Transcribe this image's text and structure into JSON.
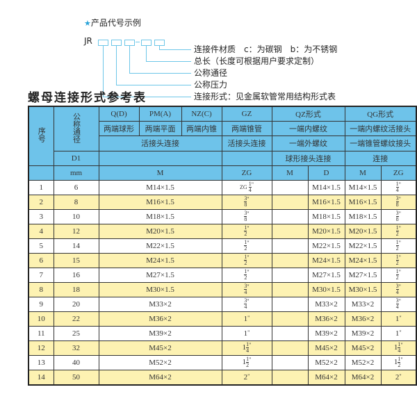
{
  "example": {
    "star_icon": "star",
    "title": "产品代号示例",
    "prefix": "JR",
    "labels": [
      "连接件材质　c：为碳钢　b：为不锈钢",
      "总长（长度可根据用户要求定制）",
      "公称通径",
      "公称压力",
      "连接形式：见金属软管常用结构形式表"
    ]
  },
  "table_title": "螺母连接形式参考表",
  "header": {
    "seq": "序号",
    "dn": "公称通径",
    "row1": [
      "Q(D)",
      "PM(A)",
      "NZ(C)",
      "GZ",
      "QZ形式",
      "QG形式"
    ],
    "row2": [
      "两端球形",
      "两端平面",
      "两端内锥",
      "两端锥管",
      "一端内螺纹",
      "一端内螺纹活接头"
    ],
    "row3": [
      "活接头连接",
      "活接头连接",
      "一端外螺纹",
      "一端锥管螺纹接头"
    ],
    "row4": [
      "D1",
      "球形接头连接",
      "连接"
    ],
    "row5": [
      "mm",
      "M",
      "ZG",
      "M",
      "D",
      "M",
      "ZG"
    ]
  },
  "colors": {
    "header_bg": "#6ec3ea",
    "alt_row_bg": "#fdf2b2",
    "accent": "#2aa3d8"
  },
  "rows": [
    {
      "no": "1",
      "dn": "6",
      "m": "M14×1.5",
      "zg": {
        "pre": "ZG",
        "w": "",
        "n": "1",
        "d": "4"
      },
      "qz_m": "",
      "qz_d": "M14×1.5",
      "qg_m": "M14×1.5",
      "qg_zg": {
        "w": "",
        "n": "1",
        "d": "4"
      }
    },
    {
      "no": "2",
      "dn": "8",
      "m": "M16×1.5",
      "zg": {
        "w": "",
        "n": "3",
        "d": "8"
      },
      "qz_m": "",
      "qz_d": "M16×1.5",
      "qg_m": "M16×1.5",
      "qg_zg": {
        "w": "",
        "n": "3",
        "d": "8"
      }
    },
    {
      "no": "3",
      "dn": "10",
      "m": "M18×1.5",
      "zg": {
        "w": "",
        "n": "3",
        "d": "8"
      },
      "qz_m": "",
      "qz_d": "M18×1.5",
      "qg_m": "M18×1.5",
      "qg_zg": {
        "w": "",
        "n": "3",
        "d": "8"
      }
    },
    {
      "no": "4",
      "dn": "12",
      "m": "M20×1.5",
      "zg": {
        "w": "",
        "n": "1",
        "d": "2"
      },
      "qz_m": "",
      "qz_d": "M20×1.5",
      "qg_m": "M20×1.5",
      "qg_zg": {
        "w": "",
        "n": "1",
        "d": "2"
      }
    },
    {
      "no": "5",
      "dn": "14",
      "m": "M22×1.5",
      "zg": {
        "w": "",
        "n": "1",
        "d": "2"
      },
      "qz_m": "",
      "qz_d": "M22×1.5",
      "qg_m": "M22×1.5",
      "qg_zg": {
        "w": "",
        "n": "1",
        "d": "2"
      }
    },
    {
      "no": "6",
      "dn": "15",
      "m": "M24×1.5",
      "zg": {
        "w": "",
        "n": "1",
        "d": "2"
      },
      "qz_m": "",
      "qz_d": "M24×1.5",
      "qg_m": "M24×1.5",
      "qg_zg": {
        "w": "",
        "n": "1",
        "d": "2"
      }
    },
    {
      "no": "7",
      "dn": "16",
      "m": "M27×1.5",
      "zg": {
        "w": "",
        "n": "1",
        "d": "2"
      },
      "qz_m": "",
      "qz_d": "M27×1.5",
      "qg_m": "M27×1.5",
      "qg_zg": {
        "w": "",
        "n": "1",
        "d": "2"
      }
    },
    {
      "no": "8",
      "dn": "18",
      "m": "M30×1.5",
      "zg": {
        "w": "",
        "n": "3",
        "d": "4"
      },
      "qz_m": "",
      "qz_d": "M30×1.5",
      "qg_m": "M30×1.5",
      "qg_zg": {
        "w": "",
        "n": "3",
        "d": "4"
      }
    },
    {
      "no": "9",
      "dn": "20",
      "m": "M33×2",
      "zg": {
        "w": "",
        "n": "3",
        "d": "4"
      },
      "qz_m": "",
      "qz_d": "M33×2",
      "qg_m": "M33×2",
      "qg_zg": {
        "w": "",
        "n": "3",
        "d": "4"
      }
    },
    {
      "no": "10",
      "dn": "22",
      "m": "M36×2",
      "zg": {
        "w": "1"
      },
      "qz_m": "",
      "qz_d": "M36×2",
      "qg_m": "M36×2",
      "qg_zg": {
        "w": "1"
      }
    },
    {
      "no": "11",
      "dn": "25",
      "m": "M39×2",
      "zg": {
        "w": "1"
      },
      "qz_m": "",
      "qz_d": "M39×2",
      "qg_m": "M39×2",
      "qg_zg": {
        "w": "1"
      }
    },
    {
      "no": "12",
      "dn": "32",
      "m": "M45×2",
      "zg": {
        "w": "1",
        "n": "1",
        "d": "4"
      },
      "qz_m": "",
      "qz_d": "M45×2",
      "qg_m": "M45×2",
      "qg_zg": {
        "w": "1",
        "n": "1",
        "d": "4"
      }
    },
    {
      "no": "13",
      "dn": "40",
      "m": "M52×2",
      "zg": {
        "w": "1",
        "n": "1",
        "d": "2"
      },
      "qz_m": "",
      "qz_d": "M52×2",
      "qg_m": "M52×2",
      "qg_zg": {
        "w": "1",
        "n": "1",
        "d": "2"
      }
    },
    {
      "no": "14",
      "dn": "50",
      "m": "M64×2",
      "zg": {
        "w": "2"
      },
      "qz_m": "",
      "qz_d": "M64×2",
      "qg_m": "M64×2",
      "qg_zg": {
        "w": "2"
      }
    }
  ]
}
